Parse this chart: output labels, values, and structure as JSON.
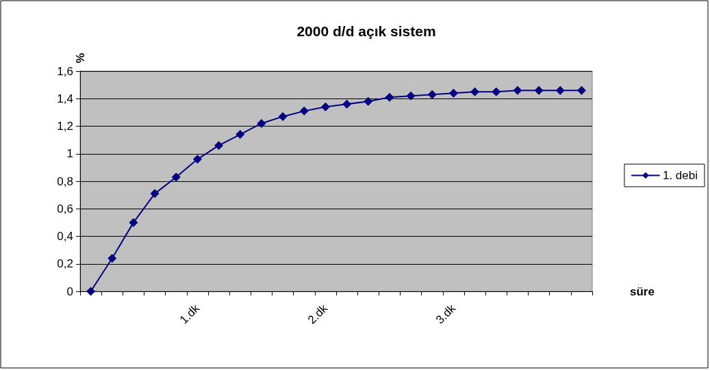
{
  "chart_data": {
    "type": "line",
    "title": "2000 d/d açık sistem",
    "ylabel": "%",
    "xlabel": "süre",
    "categories": [
      null,
      null,
      null,
      null,
      null,
      "1.dk",
      null,
      null,
      null,
      null,
      null,
      "2.dk",
      null,
      null,
      null,
      null,
      null,
      "3.dk",
      null,
      null,
      null,
      null,
      null,
      null
    ],
    "series": [
      {
        "name": "1. debi",
        "color": "#000080",
        "values": [
          0,
          0.24,
          0.5,
          0.71,
          0.83,
          0.96,
          1.06,
          1.14,
          1.22,
          1.27,
          1.31,
          1.34,
          1.36,
          1.38,
          1.41,
          1.42,
          1.43,
          1.44,
          1.45,
          1.45,
          1.46,
          1.46,
          1.46,
          1.46
        ]
      }
    ],
    "ylim": [
      0,
      1.6
    ],
    "yticks": [
      0,
      {
        "value": 0.2,
        "label": "0,2"
      },
      {
        "value": 0.4,
        "label": "0,4"
      },
      {
        "value": 0.6,
        "label": "0,6"
      },
      {
        "value": 0.8,
        "label": "0,8"
      },
      1,
      {
        "value": 1.2,
        "label": "1,2"
      },
      {
        "value": 1.4,
        "label": "1,4"
      },
      {
        "value": 1.6,
        "label": "1,6"
      }
    ],
    "grid": "y",
    "legend": "right",
    "marker": "diamond",
    "line_style": "solid"
  }
}
